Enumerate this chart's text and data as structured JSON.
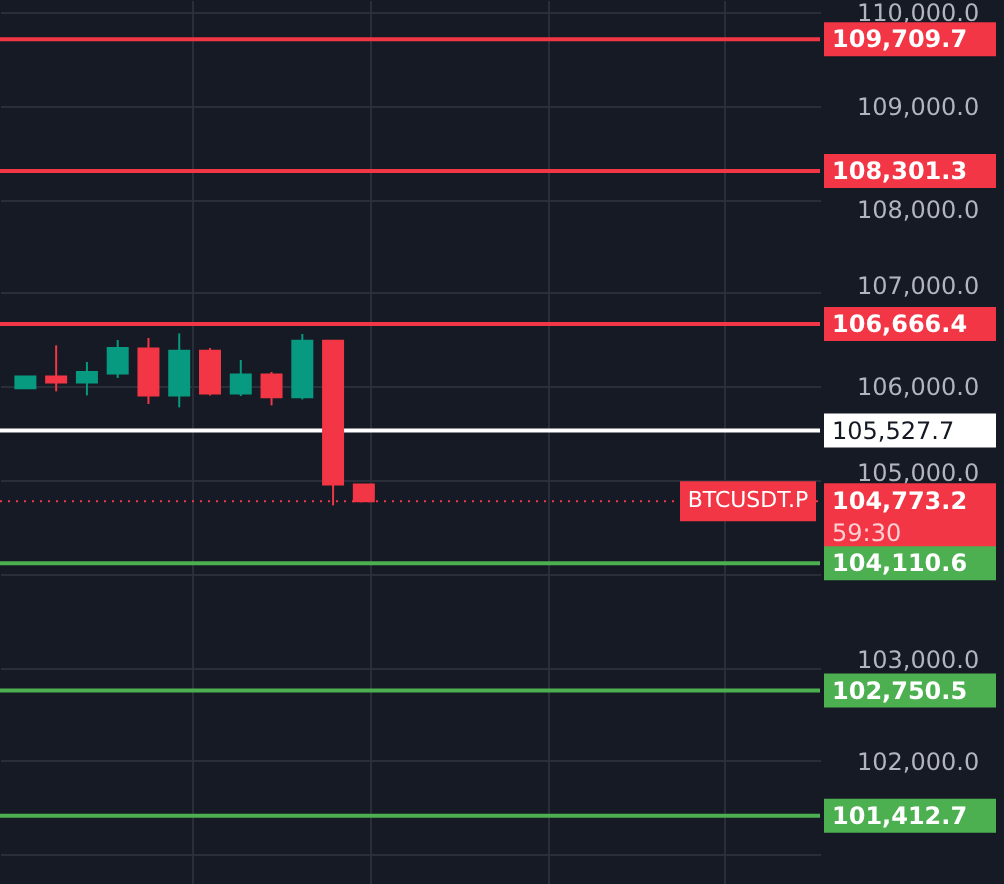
{
  "chart_data": {
    "type": "candlestick",
    "categories": [
      null,
      null,
      null,
      null,
      null,
      null,
      null,
      null,
      null,
      null,
      null,
      null,
      null,
      null,
      null,
      null,
      null,
      null,
      null,
      null,
      null,
      null,
      null,
      null,
      null,
      null
    ],
    "ohlc": [
      [
        105979,
        106107,
        105979,
        106107
      ],
      [
        106105,
        106439,
        105947,
        106041
      ],
      [
        106041,
        106261,
        105904,
        106154
      ],
      [
        106139,
        106496,
        106090,
        106410
      ],
      [
        106404,
        106517,
        105812,
        105904
      ],
      [
        105904,
        106566,
        105776,
        106382
      ],
      [
        106382,
        106410,
        105904,
        105925
      ],
      [
        105925,
        106282,
        105897,
        106126
      ],
      [
        106126,
        106154,
        105797,
        105883
      ],
      [
        105883,
        106560,
        105861,
        106489
      ],
      [
        106489,
        106489,
        104729,
        104951
      ],
      [
        104951,
        104951,
        104773.2,
        104773.2
      ],
      null,
      null,
      null,
      null,
      null,
      null,
      null,
      null,
      null,
      null,
      null,
      null,
      null,
      null
    ],
    "colors": [
      "#089981",
      "#f23645",
      "#089981",
      "#089981",
      "#f23645",
      "#089981",
      "#f23645",
      "#089981",
      "#f23645",
      "#089981",
      "#f23645",
      "#f23645",
      null,
      null,
      null,
      null,
      null,
      null,
      null,
      null,
      null,
      null,
      null,
      null,
      null,
      null
    ],
    "ylim": [
      100684,
      110128
    ],
    "yticks": [
      {
        "value": 101000,
        "label": null
      },
      {
        "value": 102000,
        "label": "102,000.0"
      },
      {
        "value": 103000,
        "label": "103,000.0"
      },
      {
        "value": 104000,
        "label": null
      },
      {
        "value": 105000,
        "label": "105,000.0"
      },
      {
        "value": 106000,
        "label": "106,000.0"
      },
      {
        "value": 107000,
        "label": "107,000.0"
      },
      {
        "value": 108000,
        "label": "108,000.0"
      },
      {
        "value": 109000,
        "label": "109,000.0"
      },
      {
        "value": 110000,
        "label": "110,000.0"
      }
    ],
    "tick_labels": "y",
    "grid": true,
    "ref_lines": [
      {
        "axis": "y",
        "value": 109709.7,
        "label": "109,709.7",
        "color": "#f23645"
      },
      {
        "axis": "y",
        "value": 108301.3,
        "label": "108,301.3",
        "color": "#f23645"
      },
      {
        "axis": "y",
        "value": 106666.4,
        "label": "106,666.4",
        "color": "#f23645"
      },
      {
        "axis": "y",
        "value": 105527.7,
        "label": "105,527.7",
        "color": "#ffffff"
      },
      {
        "axis": "y",
        "value": 104773.2,
        "label": "104,773.2",
        "color": "#f23645",
        "line_style": "dotted"
      },
      {
        "axis": "y",
        "value": 104110.6,
        "label": "104,110.6",
        "color": "#4caf50"
      },
      {
        "axis": "y",
        "value": 102750.5,
        "label": "102,750.5",
        "color": "#4caf50"
      },
      {
        "axis": "y",
        "value": 101412.7,
        "label": "101,412.7",
        "color": "#4caf50"
      }
    ],
    "annotations": [
      {
        "text": "BTCUSDT.P",
        "y": 104773.2
      },
      "59:30"
    ]
  }
}
